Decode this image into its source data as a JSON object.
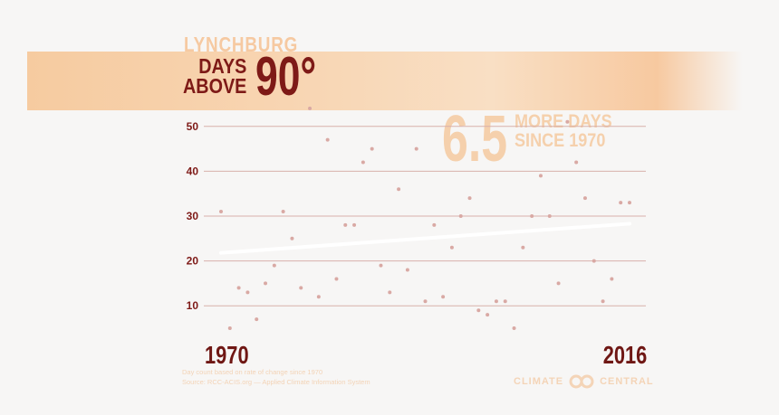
{
  "header": {
    "city": "LYNCHBURG",
    "line1": "DAYS",
    "line2": "ABOVE",
    "threshold": "90°"
  },
  "callout": {
    "number": "6.5",
    "line1": "MORE DAYS",
    "line2": "SINCE 1970"
  },
  "footer": {
    "note1": "Day count based on rate of change since 1970",
    "note2": "Source: RCC-ACIS.org — Applied Climate Information System",
    "brand_left": "CLIMATE",
    "brand_right": "CENTRAL"
  },
  "colors": {
    "primary": "#7e1a17",
    "accent": "#f6c9a1",
    "points": "#d9a9a4",
    "gridline": "#d8b0aa",
    "trend": "#ffffff"
  },
  "chart_data": {
    "type": "scatter",
    "x_start_label": "1970",
    "x_end_label": "2016",
    "xlim": [
      1970,
      2016
    ],
    "ylim": [
      4,
      56
    ],
    "yticks": [
      10,
      20,
      30,
      40,
      50
    ],
    "x": [
      1970,
      1971,
      1972,
      1973,
      1974,
      1975,
      1976,
      1977,
      1978,
      1979,
      1980,
      1981,
      1982,
      1983,
      1984,
      1985,
      1986,
      1987,
      1988,
      1989,
      1990,
      1991,
      1992,
      1993,
      1994,
      1995,
      1996,
      1997,
      1998,
      1999,
      2000,
      2001,
      2002,
      2003,
      2004,
      2005,
      2006,
      2007,
      2008,
      2009,
      2010,
      2011,
      2012,
      2013,
      2014,
      2015,
      2016
    ],
    "y": [
      31,
      5,
      14,
      13,
      7,
      15,
      19,
      31,
      25,
      14,
      54,
      12,
      47,
      16,
      28,
      28,
      42,
      45,
      19,
      13,
      36,
      18,
      45,
      11,
      28,
      12,
      23,
      30,
      34,
      9,
      8,
      11,
      11,
      5,
      23,
      30,
      39,
      30,
      15,
      51,
      42,
      34,
      20,
      11,
      16,
      33,
      33
    ],
    "trend": {
      "start": {
        "x": 1970,
        "y": 21.8
      },
      "end": {
        "x": 2016,
        "y": 28.3
      }
    },
    "grid": true
  }
}
